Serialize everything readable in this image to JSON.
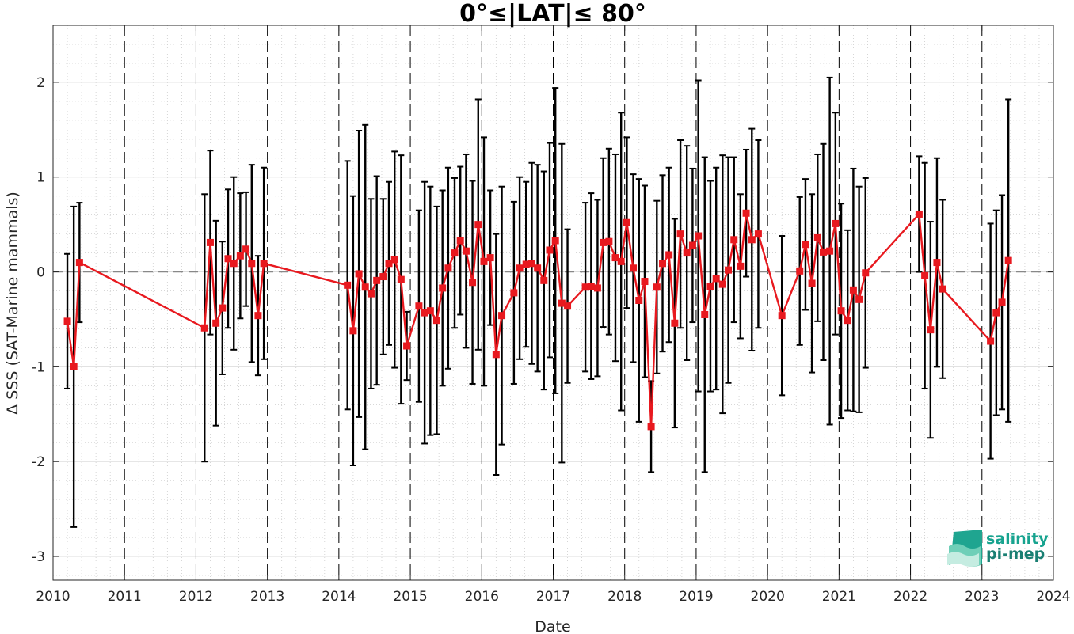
{
  "chart_data": {
    "type": "line",
    "title": "0°≤|LAT|≤ 80°",
    "xlabel": "Date",
    "ylabel": "Δ SSS (SAT-Marine mammals)",
    "xlim": [
      2010,
      2024
    ],
    "ylim": [
      -3.25,
      2.6
    ],
    "xticks": [
      2010,
      2011,
      2012,
      2013,
      2014,
      2015,
      2016,
      2017,
      2018,
      2019,
      2020,
      2021,
      2022,
      2023,
      2024
    ],
    "xtick_labels": [
      "2010",
      "2011",
      "2012",
      "2013",
      "2014",
      "2015",
      "2016",
      "2017",
      "2018",
      "2019",
      "2020",
      "2021",
      "2022",
      "2023",
      "2024"
    ],
    "yticks": [
      -3,
      -2,
      -1,
      0,
      1,
      2
    ],
    "ytick_labels": [
      "-3",
      "-2",
      "-1",
      "0",
      "1",
      "2"
    ],
    "grid": "on",
    "zero_line": "dashed",
    "year_lines": "dashed",
    "colors": {
      "series": "#e8191f",
      "errorbar": "#000000",
      "grid": "#cccccc",
      "zero_line": "#888888",
      "logo": "#17a38f"
    },
    "series": [
      {
        "marker": "square",
        "x": [
          2010.2,
          2010.29,
          2010.37,
          2012.12,
          2012.2,
          2012.28,
          2012.37,
          2012.45,
          2012.53,
          2012.62,
          2012.7,
          2012.78,
          2012.87,
          2012.95,
          2014.12,
          2014.2,
          2014.28,
          2014.37,
          2014.45,
          2014.53,
          2014.62,
          2014.7,
          2014.78,
          2014.87,
          2014.95,
          2015.12,
          2015.2,
          2015.28,
          2015.37,
          2015.45,
          2015.53,
          2015.62,
          2015.7,
          2015.78,
          2015.87,
          2015.95,
          2016.03,
          2016.12,
          2016.2,
          2016.28,
          2016.45,
          2016.53,
          2016.62,
          2016.7,
          2016.78,
          2016.87,
          2016.95,
          2017.03,
          2017.12,
          2017.2,
          2017.45,
          2017.53,
          2017.62,
          2017.7,
          2017.78,
          2017.87,
          2017.95,
          2018.03,
          2018.12,
          2018.2,
          2018.28,
          2018.37,
          2018.45,
          2018.53,
          2018.62,
          2018.7,
          2018.78,
          2018.87,
          2018.95,
          2019.03,
          2019.12,
          2019.2,
          2019.28,
          2019.37,
          2019.45,
          2019.53,
          2019.62,
          2019.7,
          2019.78,
          2019.87,
          2020.2,
          2020.45,
          2020.53,
          2020.62,
          2020.7,
          2020.78,
          2020.87,
          2020.95,
          2021.03,
          2021.12,
          2021.2,
          2021.28,
          2021.37,
          2022.12,
          2022.2,
          2022.28,
          2022.37,
          2022.45,
          2023.12,
          2023.2,
          2023.28,
          2023.37
        ],
        "y": [
          -0.52,
          -1.0,
          0.1,
          -0.59,
          0.31,
          -0.54,
          -0.38,
          0.14,
          0.09,
          0.17,
          0.24,
          0.09,
          -0.46,
          0.09,
          -0.14,
          -0.62,
          -0.02,
          -0.16,
          -0.23,
          -0.09,
          -0.05,
          0.09,
          0.13,
          -0.08,
          -0.78,
          -0.36,
          -0.43,
          -0.41,
          -0.51,
          -0.17,
          0.04,
          0.2,
          0.33,
          0.22,
          -0.11,
          0.5,
          0.11,
          0.15,
          -0.87,
          -0.46,
          -0.22,
          0.04,
          0.08,
          0.09,
          0.04,
          -0.09,
          0.23,
          0.33,
          -0.33,
          -0.36,
          -0.16,
          -0.15,
          -0.17,
          0.31,
          0.32,
          0.15,
          0.11,
          0.52,
          0.04,
          -0.3,
          -0.1,
          -1.63,
          -0.16,
          0.09,
          0.18,
          -0.54,
          0.4,
          0.2,
          0.28,
          0.38,
          -0.45,
          -0.15,
          -0.07,
          -0.13,
          0.02,
          0.34,
          0.06,
          0.62,
          0.34,
          0.4,
          -0.46,
          0.01,
          0.29,
          -0.12,
          0.36,
          0.21,
          0.22,
          0.51,
          -0.41,
          -0.51,
          -0.19,
          -0.29,
          -0.01,
          0.61,
          -0.04,
          -0.61,
          0.1,
          -0.18,
          -0.73,
          -0.43,
          -0.32,
          0.12
        ],
        "err": [
          0.71,
          1.69,
          0.63,
          1.41,
          0.97,
          1.08,
          0.7,
          0.73,
          0.91,
          0.66,
          0.6,
          1.04,
          0.63,
          1.01,
          1.31,
          1.42,
          1.51,
          1.71,
          1.0,
          1.1,
          0.82,
          0.86,
          1.14,
          1.31,
          0.36,
          1.01,
          1.38,
          1.31,
          1.2,
          1.03,
          1.06,
          0.79,
          0.78,
          1.02,
          1.07,
          1.32,
          1.31,
          0.71,
          1.27,
          1.36,
          0.96,
          0.96,
          0.87,
          1.06,
          1.09,
          1.15,
          1.13,
          1.61,
          1.68,
          0.81,
          0.89,
          0.98,
          0.93,
          0.89,
          0.98,
          1.09,
          1.57,
          0.9,
          0.99,
          1.28,
          1.01,
          0.48,
          0.91,
          0.93,
          0.92,
          1.1,
          0.99,
          1.13,
          0.81,
          1.64,
          1.66,
          1.11,
          1.17,
          1.36,
          1.19,
          0.87,
          0.76,
          0.67,
          1.17,
          0.99,
          0.84,
          0.78,
          0.69,
          0.94,
          0.88,
          1.14,
          1.83,
          1.17,
          1.13,
          0.95,
          1.28,
          1.19,
          1.0,
          0.61,
          1.19,
          1.14,
          1.1,
          0.94,
          1.24,
          1.08,
          1.13,
          1.7
        ]
      }
    ]
  },
  "logo": {
    "line1": "salinity",
    "line2": "pi-mep"
  }
}
